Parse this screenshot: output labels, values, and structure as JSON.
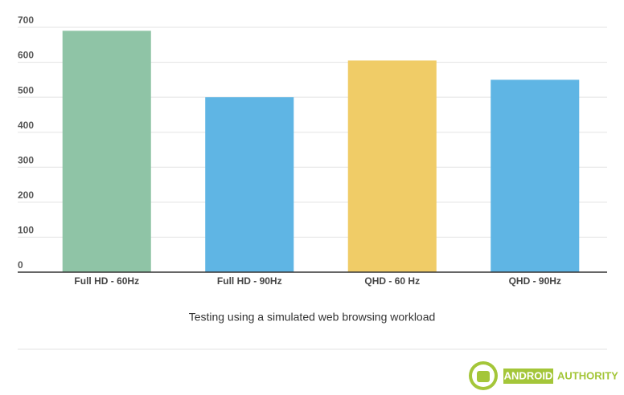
{
  "chart_data": {
    "type": "bar",
    "categories": [
      "Full HD - 60Hz",
      "Full HD - 90Hz",
      "QHD - 60 Hz",
      "QHD - 90Hz"
    ],
    "values": [
      690,
      500,
      605,
      550
    ],
    "colors": [
      "#8fc4a6",
      "#5fb5e4",
      "#f0cc67",
      "#5fb5e4"
    ],
    "ylim": [
      0,
      700
    ],
    "yticks": [
      0,
      100,
      200,
      300,
      400,
      500,
      600,
      700
    ],
    "grid": true,
    "caption": "Testing using a simulated web browsing workload"
  },
  "watermark": {
    "brand_first": "ANDROID",
    "brand_second": "AUTHORITY"
  }
}
